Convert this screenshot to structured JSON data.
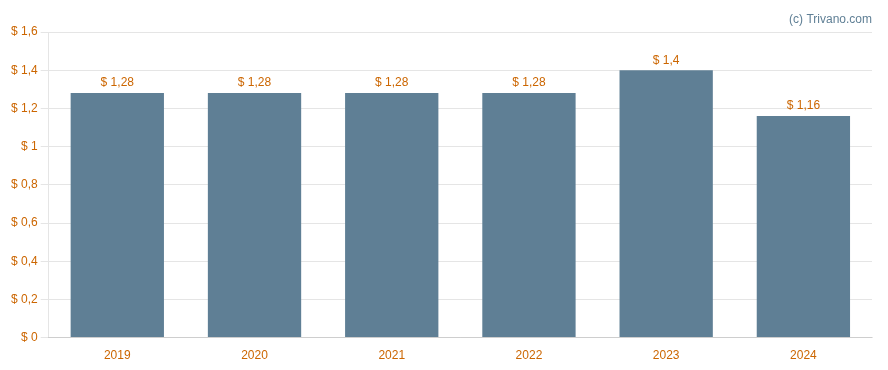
{
  "chart_data": {
    "type": "bar",
    "categories": [
      "2019",
      "2020",
      "2021",
      "2022",
      "2023",
      "2024"
    ],
    "values": [
      1.28,
      1.28,
      1.28,
      1.28,
      1.4,
      1.16
    ],
    "value_labels": [
      "$ 1,28",
      "$ 1,28",
      "$ 1,28",
      "$ 1,28",
      "$ 1,4",
      "$ 1,16"
    ],
    "data_labels": true,
    "color": "#5f7f95",
    "ylim": [
      0,
      1.6
    ],
    "yticks": [
      {
        "value": 0,
        "label": "$ 0"
      },
      {
        "value": 0.2,
        "label": "$ 0,2"
      },
      {
        "value": 0.4,
        "label": "$ 0,4"
      },
      {
        "value": 0.6,
        "label": "$ 0,6"
      },
      {
        "value": 0.8,
        "label": "$ 0,8"
      },
      {
        "value": 1.0,
        "label": "$ 1"
      },
      {
        "value": 1.2,
        "label": "$ 1,2"
      },
      {
        "value": 1.4,
        "label": "$ 1,4"
      },
      {
        "value": 1.6,
        "label": "$ 1,6"
      }
    ],
    "grid": true,
    "annotations": [
      "(c) Trivano.com"
    ]
  }
}
